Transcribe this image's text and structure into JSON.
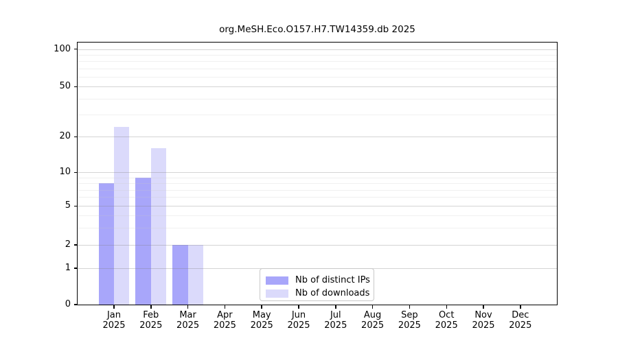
{
  "chart_data": {
    "type": "bar",
    "title": "org.MeSH.Eco.O157.H7.TW14359.db 2025",
    "categories": [
      "Jan",
      "Feb",
      "Mar",
      "Apr",
      "May",
      "Jun",
      "Jul",
      "Aug",
      "Sep",
      "Oct",
      "Nov",
      "Dec"
    ],
    "category_year": "2025",
    "series": [
      {
        "name": "Nb of distinct IPs",
        "color": "#A8A6FA",
        "values": [
          8,
          9,
          2,
          0,
          0,
          0,
          0,
          0,
          0,
          0,
          0,
          0
        ]
      },
      {
        "name": "Nb of downloads",
        "color": "#DBDAFB",
        "values": [
          24,
          16,
          2,
          0,
          0,
          0,
          0,
          0,
          0,
          0,
          0,
          0
        ]
      }
    ],
    "yticks": [
      0,
      1,
      2,
      5,
      10,
      20,
      50,
      100
    ],
    "yscale": "log-like (linear 0-1, logarithmic 1-100)",
    "ylim": [
      0,
      113
    ],
    "xlabel": "",
    "ylabel": "",
    "grid": "horizontal major and minor gridlines",
    "legend_position": "bottom center inside plot",
    "colors": {
      "axis": "#000000",
      "grid_major": "#D4D4D4",
      "grid_minor": "#F0F0F0",
      "background": "#FFFFFF"
    }
  }
}
